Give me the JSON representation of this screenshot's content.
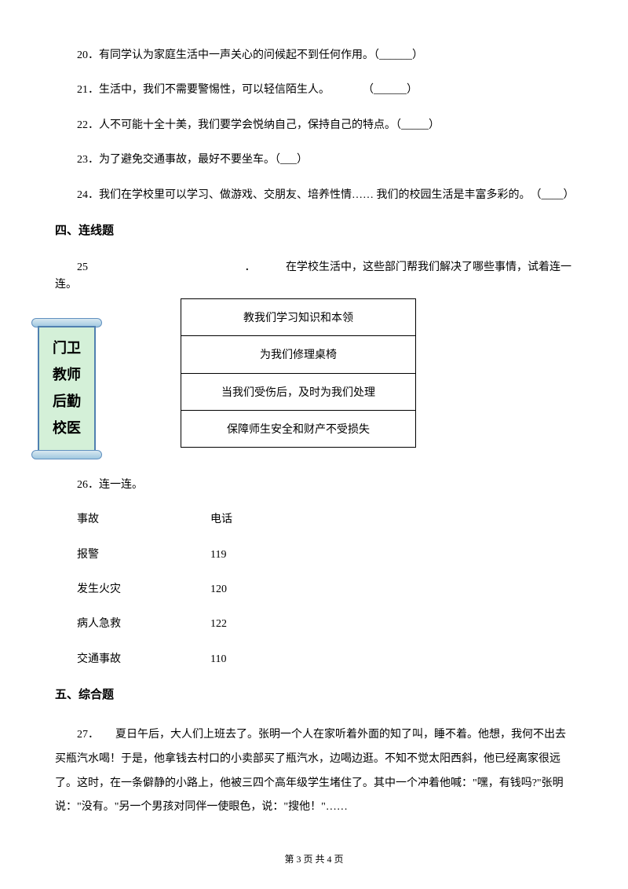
{
  "questions": {
    "q20": "20．有同学认为家庭生活中一声关心的问候起不到任何作用。（______）",
    "q21": "21．生活中，我们不需要警惕性，可以轻信陌生人。　　　　（______）",
    "q22": "22．人不可能十全十美，我们要学会悦纳自己，保持自己的特点。（_____）",
    "q23": "23．为了避免交通事故，最好不要坐车。（___）",
    "q24": "24．我们在学校里可以学习、做游戏、交朋友、培养性情…… 我们的校园生活是丰富多彩的。　（____）"
  },
  "section4": {
    "title": "四、连线题",
    "q25": {
      "number": "25",
      "prompt": "在学校生活中，这些部门帮我们解决了哪些事情，试着连一连。",
      "scroll_items": [
        "门卫",
        "教师",
        "后勤",
        "校医"
      ],
      "match_items": [
        "教我们学习知识和本领",
        "为我们修理桌椅",
        "当我们受伤后，及时为我们处理",
        "保障师生安全和财产不受损失"
      ]
    },
    "q26": {
      "number": "26．连一连。",
      "header_left": "事故",
      "header_right": "电话",
      "rows": [
        {
          "left": "报警",
          "right": "119"
        },
        {
          "left": "发生火灾",
          "right": "120"
        },
        {
          "left": "病人急救",
          "right": "122"
        },
        {
          "left": "交通事故",
          "right": "110"
        }
      ]
    }
  },
  "section5": {
    "title": "五、综合题",
    "q27": {
      "text": "27．　　夏日午后，大人们上班去了。张明一个人在家听着外面的知了叫，睡不着。他想，我何不出去买瓶汽水喝！于是，他拿钱去村口的小卖部买了瓶汽水，边喝边逛。不知不觉太阳西斜，他已经离家很远了。这时，在一条僻静的小路上，他被三四个高年级学生堵住了。其中一个冲着他喊：\"嘿，有钱吗?\"张明说：\"没有。\"另一个男孩对同伴一使眼色，说：\"搜他！\"……"
    }
  },
  "footer": "第 3 页 共 4 页"
}
